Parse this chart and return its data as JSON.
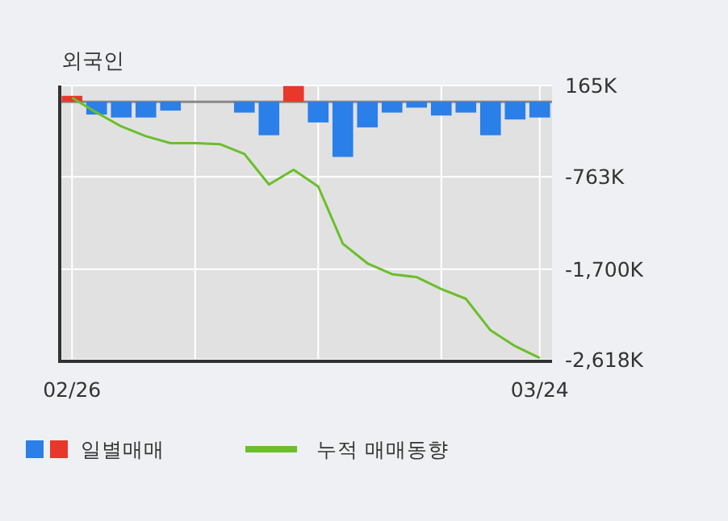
{
  "chart_data": {
    "type": "bar",
    "title": "외국인",
    "categories": [
      "02/26",
      null,
      null,
      null,
      null,
      null,
      null,
      null,
      null,
      null,
      null,
      null,
      null,
      null,
      null,
      null,
      null,
      null,
      null,
      "03/24"
    ],
    "series": [
      {
        "name": "일별매매",
        "colors": [
          "#e8372b",
          "#2b7fe8",
          "#2b7fe8",
          "#2b7fe8",
          "#2b7fe8",
          "#2b7fe8",
          "#2b7fe8",
          "#2b7fe8",
          "#2b7fe8",
          "#e8372b",
          "#2b7fe8",
          "#2b7fe8",
          "#2b7fe8",
          "#2b7fe8",
          "#2b7fe8",
          "#2b7fe8",
          "#2b7fe8",
          "#2b7fe8",
          "#2b7fe8",
          "#2b7fe8"
        ],
        "values": [
          60,
          -130,
          -160,
          -160,
          -90,
          0,
          0,
          -110,
          -340,
          160,
          -210,
          -560,
          -260,
          -110,
          -60,
          -140,
          -110,
          -340,
          -180,
          -160
        ]
      },
      {
        "type": "line",
        "name": "누적 매매동향",
        "color": "#6abf2a",
        "values": [
          40,
          -110,
          -250,
          -350,
          -420,
          -420,
          -430,
          -530,
          -840,
          -690,
          -860,
          -1440,
          -1640,
          -1750,
          -1780,
          -1900,
          -2000,
          -2320,
          -2480,
          -2600
        ]
      }
    ],
    "ylim": [
      -2618,
      165
    ],
    "yticks": [
      {
        "value": 165,
        "label": "165K"
      },
      {
        "value": -763,
        "label": "-763K"
      },
      {
        "value": -1700,
        "label": "-1,700K"
      },
      {
        "value": -2618,
        "label": "-2,618K"
      }
    ],
    "grid": true,
    "legend": "bottom"
  }
}
